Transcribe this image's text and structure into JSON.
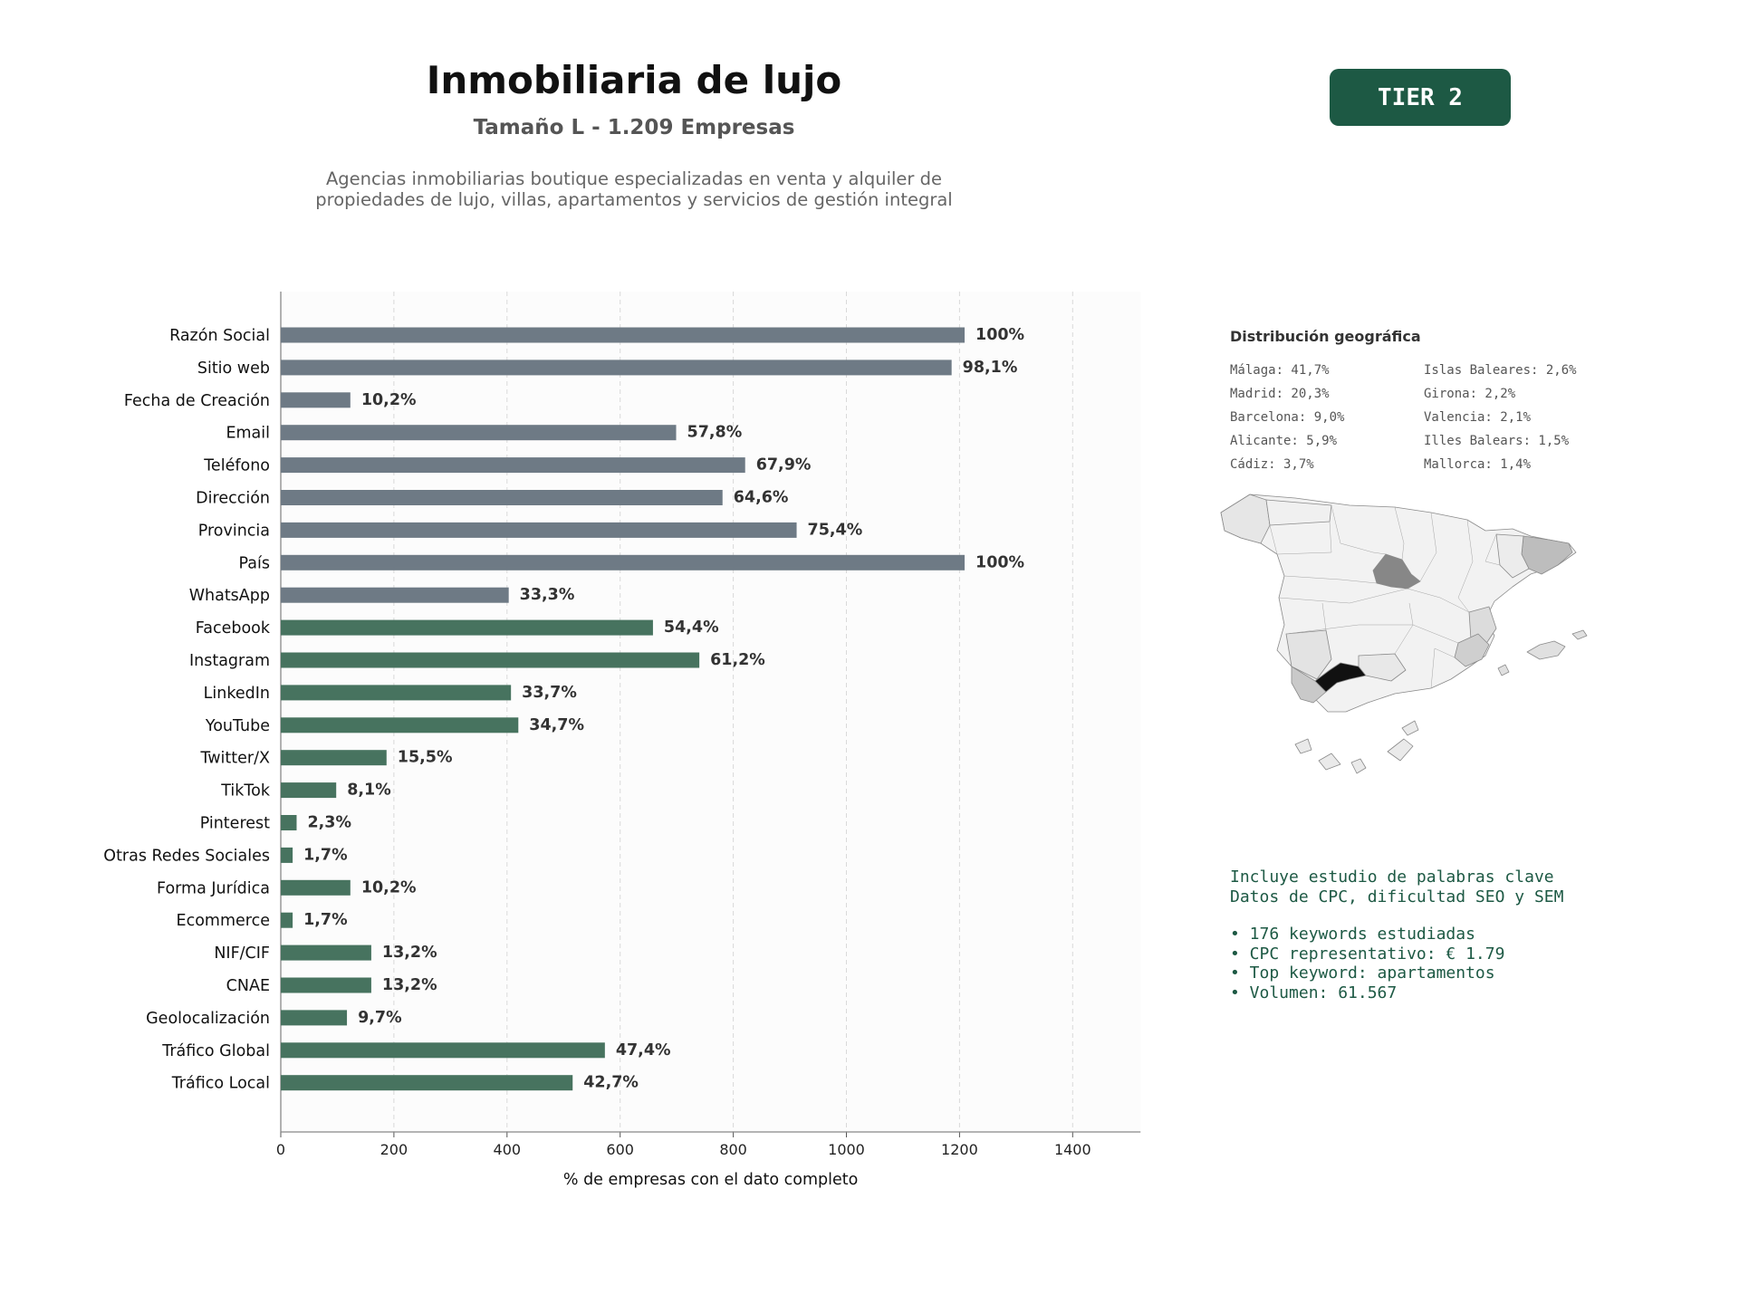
{
  "header": {
    "title": "Inmobiliaria de lujo",
    "subtitle": "Tamaño L - 1.209 Empresas",
    "description": "Agencias inmobiliarias boutique especializadas en venta y alquiler de propiedades de lujo, villas, apartamentos y servicios de gestión integral",
    "tier": "TIER 2"
  },
  "colors": {
    "contact_bar": "#6e7a85",
    "social_bar": "#47735f",
    "accent": "#1d5944",
    "map_highlight": "#111111"
  },
  "chart_data": {
    "type": "bar",
    "orientation": "horizontal",
    "xlabel": "% de empresas con el dato completo",
    "xlim": [
      0,
      1520
    ],
    "xticks": [
      0,
      200,
      400,
      600,
      800,
      1000,
      1200,
      1400
    ],
    "grid": "x-dashed",
    "total": 1209,
    "categories": [
      "Razón Social",
      "Sitio web",
      "Fecha de Creación",
      "Email",
      "Teléfono",
      "Dirección",
      "Provincia",
      "País",
      "WhatsApp",
      "Facebook",
      "Instagram",
      "LinkedIn",
      "YouTube",
      "Twitter/X",
      "TikTok",
      "Pinterest",
      "Otras Redes Sociales",
      "Forma Jurídica",
      "Ecommerce",
      "NIF/CIF",
      "CNAE",
      "Geolocalización",
      "Tráfico Global",
      "Tráfico Local"
    ],
    "values": [
      1209,
      1186,
      123,
      699,
      821,
      781,
      912,
      1209,
      403,
      658,
      740,
      407,
      420,
      187,
      98,
      28,
      21,
      123,
      21,
      160,
      160,
      117,
      573,
      516
    ],
    "labels": [
      "100%",
      "98,1%",
      "10,2%",
      "57,8%",
      "67,9%",
      "64,6%",
      "75,4%",
      "100%",
      "33,3%",
      "54,4%",
      "61,2%",
      "33,7%",
      "34,7%",
      "15,5%",
      "8,1%",
      "2,3%",
      "1,7%",
      "10,2%",
      "1,7%",
      "13,2%",
      "13,2%",
      "9,7%",
      "47,4%",
      "42,7%"
    ],
    "groups": [
      "contact",
      "contact",
      "contact",
      "contact",
      "contact",
      "contact",
      "contact",
      "contact",
      "contact",
      "social",
      "social",
      "social",
      "social",
      "social",
      "social",
      "social",
      "social",
      "social",
      "social",
      "social",
      "social",
      "social",
      "social",
      "social"
    ]
  },
  "geo": {
    "title": "Distribución geográfica",
    "col1": [
      "Málaga: 41,7%",
      "Madrid: 20,3%",
      "Barcelona: 9,0%",
      "Alicante: 5,9%",
      "Cádiz: 3,7%"
    ],
    "col2": [
      "Islas Baleares: 2,6%",
      "Girona: 2,2%",
      "Valencia: 2,1%",
      "Illes Balears: 1,5%",
      "Mallorca: 1,4%"
    ]
  },
  "keywords": {
    "line1": "Incluye estudio de palabras clave",
    "line2": "Datos de CPC, dificultad SEO y SEM",
    "bullets": [
      "• 176 keywords estudiadas",
      "• CPC representativo: € 1.79",
      "• Top keyword: apartamentos",
      "• Volumen: 61.567"
    ]
  }
}
